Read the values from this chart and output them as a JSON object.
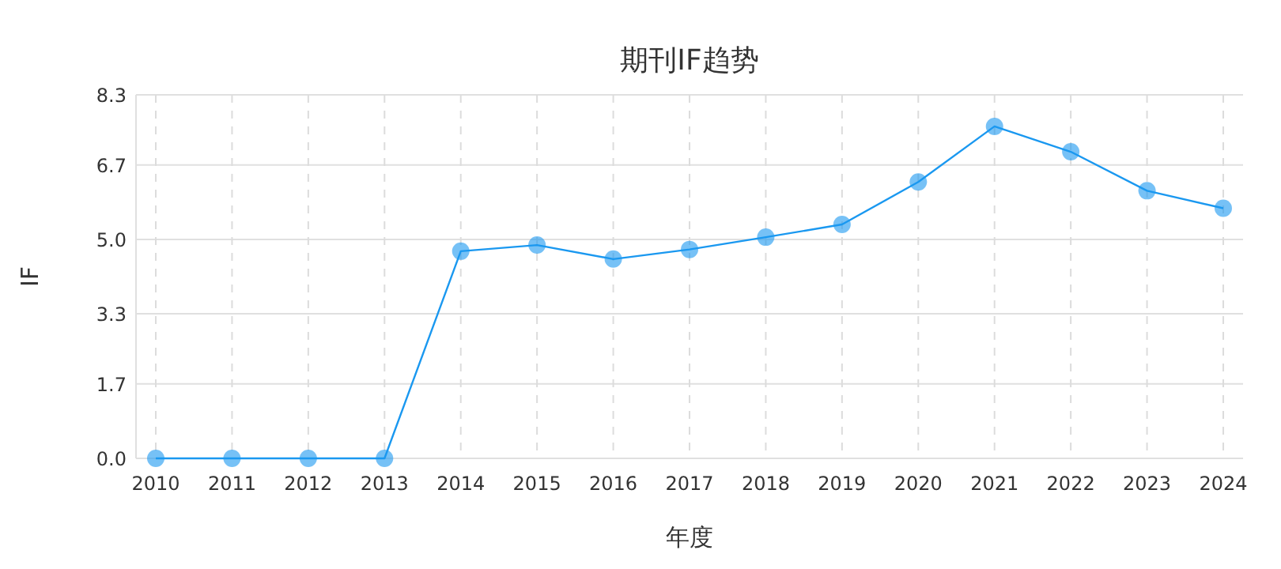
{
  "chart_data": {
    "type": "line",
    "title": "期刊IF趋势",
    "xlabel": "年度",
    "ylabel": "IF",
    "categories": [
      "2010",
      "2011",
      "2012",
      "2013",
      "2014",
      "2015",
      "2016",
      "2017",
      "2018",
      "2019",
      "2020",
      "2021",
      "2022",
      "2023",
      "2024"
    ],
    "series": [
      {
        "color": "#1a98f0",
        "values": [
          0,
          0,
          0,
          0,
          4.73,
          4.87,
          4.55,
          4.77,
          5.05,
          5.34,
          6.31,
          7.58,
          7.0,
          6.11,
          5.71
        ]
      }
    ],
    "ylim": [
      0,
      8.3
    ],
    "yticks": [
      {
        "value": 0,
        "label": "0.0"
      },
      1.7,
      3.3,
      {
        "value": 5,
        "label": "5.0"
      },
      6.7,
      8.3
    ],
    "grid": true,
    "marker": "circle",
    "line_style": "solid"
  }
}
